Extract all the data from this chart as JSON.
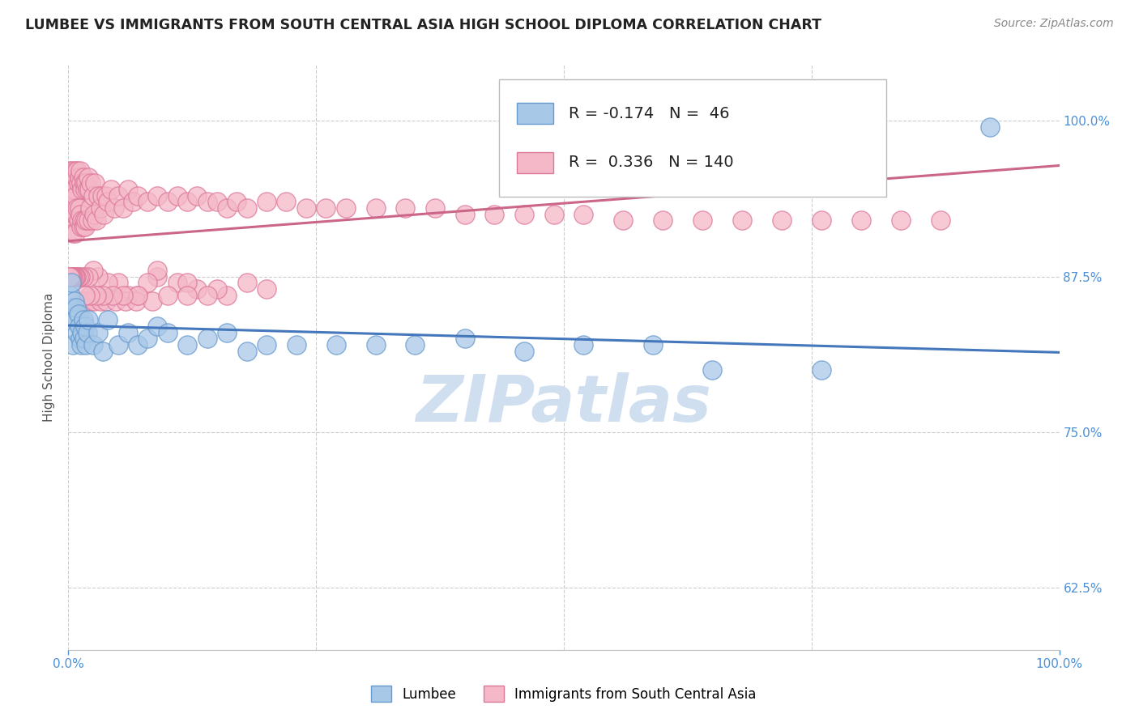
{
  "title": "LUMBEE VS IMMIGRANTS FROM SOUTH CENTRAL ASIA HIGH SCHOOL DIPLOMA CORRELATION CHART",
  "source_text": "Source: ZipAtlas.com",
  "ylabel": "High School Diploma",
  "xlim": [
    0.0,
    1.0
  ],
  "ylim": [
    0.575,
    1.045
  ],
  "ytick_positions": [
    0.625,
    0.75,
    0.875,
    1.0
  ],
  "ytick_labels": [
    "62.5%",
    "75.0%",
    "87.5%",
    "100.0%"
  ],
  "lumbee_color": "#a8c8e8",
  "immigrants_color": "#f4b8c8",
  "lumbee_edge": "#6699cc",
  "immigrants_edge": "#dd7799",
  "lumbee_R": -0.174,
  "lumbee_N": 46,
  "immigrants_R": 0.336,
  "immigrants_N": 140,
  "legend_lumbee": "Lumbee",
  "legend_immigrants": "Immigrants from South Central Asia",
  "background_color": "#ffffff",
  "grid_color": "#cccccc",
  "title_color": "#222222",
  "watermark_text": "ZIPatlas",
  "watermark_color": "#d0dff0",
  "lumbee_line_color": "#4477bb",
  "immigrants_line_color": "#cc6688",
  "lumbee_x": [
    0.001,
    0.002,
    0.003,
    0.004,
    0.005,
    0.006,
    0.007,
    0.008,
    0.009,
    0.01,
    0.011,
    0.012,
    0.013,
    0.014,
    0.015,
    0.016,
    0.017,
    0.018,
    0.019,
    0.02,
    0.025,
    0.03,
    0.035,
    0.04,
    0.05,
    0.06,
    0.07,
    0.08,
    0.09,
    0.1,
    0.12,
    0.14,
    0.16,
    0.18,
    0.2,
    0.23,
    0.27,
    0.31,
    0.35,
    0.4,
    0.46,
    0.52,
    0.59,
    0.65,
    0.76,
    0.93
  ],
  "lumbee_y": [
    0.84,
    0.86,
    0.87,
    0.85,
    0.82,
    0.855,
    0.84,
    0.85,
    0.83,
    0.845,
    0.835,
    0.825,
    0.82,
    0.83,
    0.84,
    0.825,
    0.835,
    0.82,
    0.83,
    0.84,
    0.82,
    0.83,
    0.815,
    0.84,
    0.82,
    0.83,
    0.82,
    0.825,
    0.835,
    0.83,
    0.82,
    0.825,
    0.83,
    0.815,
    0.82,
    0.82,
    0.82,
    0.82,
    0.82,
    0.825,
    0.815,
    0.82,
    0.82,
    0.8,
    0.8,
    0.995
  ],
  "immigrants_x": [
    0.001,
    0.002,
    0.003,
    0.003,
    0.004,
    0.004,
    0.005,
    0.005,
    0.006,
    0.006,
    0.007,
    0.007,
    0.007,
    0.008,
    0.008,
    0.009,
    0.009,
    0.01,
    0.01,
    0.011,
    0.011,
    0.012,
    0.012,
    0.013,
    0.013,
    0.014,
    0.014,
    0.015,
    0.015,
    0.016,
    0.016,
    0.017,
    0.017,
    0.018,
    0.018,
    0.019,
    0.02,
    0.02,
    0.021,
    0.022,
    0.023,
    0.024,
    0.025,
    0.026,
    0.027,
    0.028,
    0.03,
    0.032,
    0.034,
    0.036,
    0.038,
    0.04,
    0.043,
    0.046,
    0.05,
    0.055,
    0.06,
    0.065,
    0.07,
    0.08,
    0.09,
    0.1,
    0.11,
    0.12,
    0.13,
    0.14,
    0.15,
    0.16,
    0.17,
    0.18,
    0.2,
    0.22,
    0.24,
    0.26,
    0.28,
    0.31,
    0.34,
    0.37,
    0.4,
    0.43,
    0.46,
    0.49,
    0.52,
    0.56,
    0.6,
    0.64,
    0.68,
    0.72,
    0.76,
    0.8,
    0.84,
    0.88,
    0.05,
    0.07,
    0.09,
    0.11,
    0.13,
    0.16,
    0.2,
    0.09,
    0.12,
    0.15,
    0.18,
    0.06,
    0.08,
    0.04,
    0.03,
    0.025,
    0.02,
    0.015,
    0.012,
    0.01,
    0.008,
    0.007,
    0.006,
    0.005,
    0.004,
    0.003,
    0.002,
    0.001,
    0.016,
    0.018,
    0.022,
    0.026,
    0.032,
    0.038,
    0.048,
    0.058,
    0.068,
    0.085,
    0.1,
    0.12,
    0.14,
    0.07,
    0.055,
    0.045,
    0.035,
    0.028,
    0.022,
    0.017
  ],
  "immigrants_y": [
    0.96,
    0.94,
    0.95,
    0.93,
    0.96,
    0.92,
    0.95,
    0.91,
    0.945,
    0.925,
    0.96,
    0.94,
    0.91,
    0.955,
    0.925,
    0.96,
    0.93,
    0.95,
    0.92,
    0.955,
    0.93,
    0.96,
    0.925,
    0.95,
    0.915,
    0.945,
    0.92,
    0.955,
    0.915,
    0.95,
    0.92,
    0.945,
    0.915,
    0.95,
    0.92,
    0.945,
    0.955,
    0.92,
    0.945,
    0.93,
    0.95,
    0.92,
    0.94,
    0.925,
    0.95,
    0.92,
    0.94,
    0.93,
    0.94,
    0.925,
    0.94,
    0.935,
    0.945,
    0.93,
    0.94,
    0.93,
    0.945,
    0.935,
    0.94,
    0.935,
    0.94,
    0.935,
    0.94,
    0.935,
    0.94,
    0.935,
    0.935,
    0.93,
    0.935,
    0.93,
    0.935,
    0.935,
    0.93,
    0.93,
    0.93,
    0.93,
    0.93,
    0.93,
    0.925,
    0.925,
    0.925,
    0.925,
    0.925,
    0.92,
    0.92,
    0.92,
    0.92,
    0.92,
    0.92,
    0.92,
    0.92,
    0.92,
    0.87,
    0.86,
    0.875,
    0.87,
    0.865,
    0.86,
    0.865,
    0.88,
    0.87,
    0.865,
    0.87,
    0.86,
    0.87,
    0.87,
    0.875,
    0.88,
    0.875,
    0.875,
    0.875,
    0.875,
    0.875,
    0.875,
    0.875,
    0.875,
    0.875,
    0.875,
    0.875,
    0.875,
    0.855,
    0.855,
    0.855,
    0.855,
    0.855,
    0.855,
    0.855,
    0.855,
    0.855,
    0.855,
    0.86,
    0.86,
    0.86,
    0.86,
    0.86,
    0.86,
    0.86,
    0.86,
    0.86,
    0.86
  ]
}
